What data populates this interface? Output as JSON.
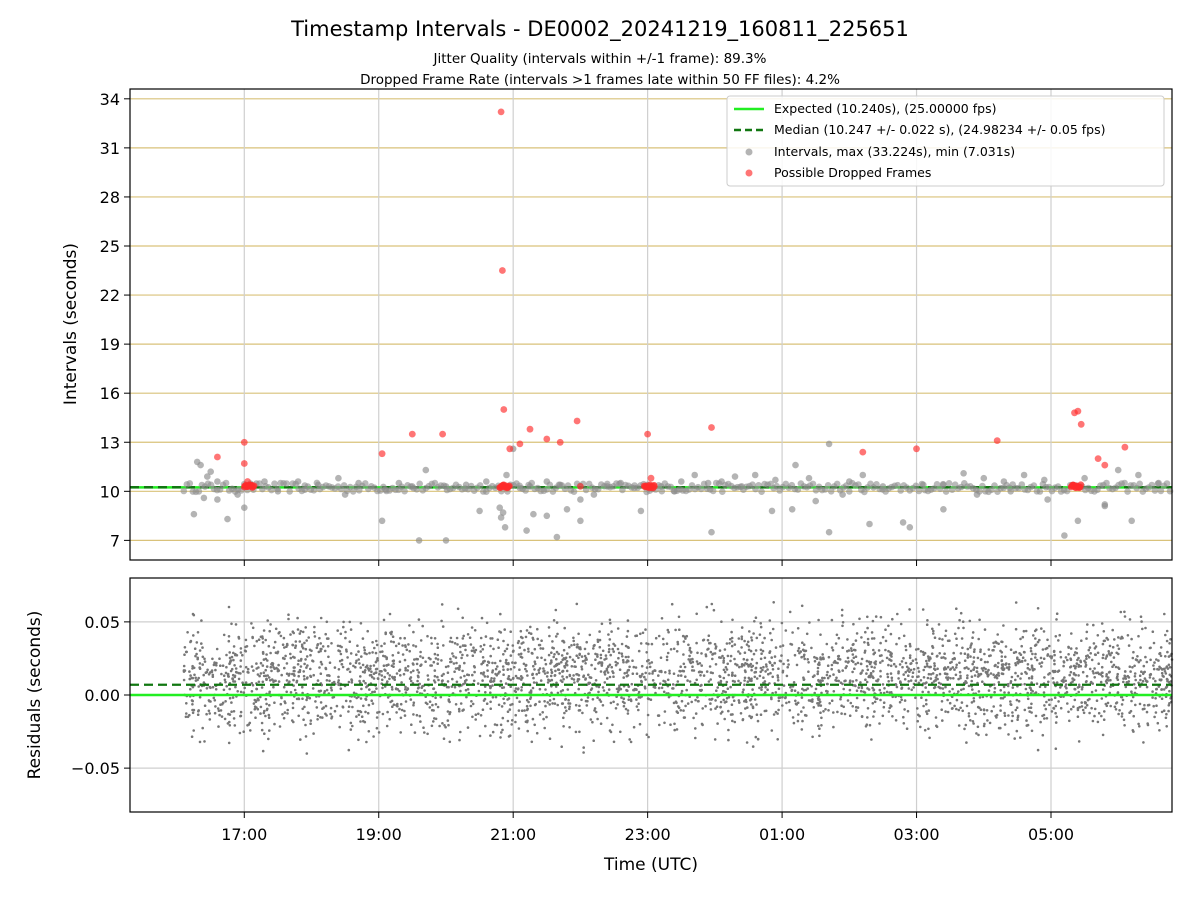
{
  "figure": {
    "title": "Timestamp Intervals - DE0002_20241219_160811_225651",
    "subtitle_1": "Jitter Quality (intervals within +/-1 frame): 89.3%",
    "subtitle_2": "Dropped Frame Rate (intervals >1 frames late within 50 FF files): 4.2%"
  },
  "colors": {
    "expected": "#22ee22",
    "median": "#117711",
    "intervals": "#8c8c8c",
    "dropped": "#ff2b2b",
    "hgrid_top": "#d9c27a",
    "grid": "#cfcfcf",
    "residual_points": "#777777"
  },
  "chart_data": [
    {
      "type": "scatter",
      "panel": "intervals",
      "ylabel": "Intervals (seconds)",
      "xlabel": "",
      "xlim_hours": [
        15.3,
        30.8
      ],
      "ylim": [
        5.8,
        34.6
      ],
      "yticks": [
        7,
        10,
        13,
        16,
        19,
        22,
        25,
        28,
        31,
        34
      ],
      "grid": "horizontal at every y tick, vertical at every x tick",
      "legend_position": "top-right",
      "legend": [
        {
          "key": "expected",
          "label": "Expected (10.240s), (25.00000 fps)"
        },
        {
          "key": "median",
          "label": "Median (10.247 +/- 0.022 s), (24.98234 +/- 0.05 fps)"
        },
        {
          "key": "intervals",
          "label": "Intervals, max (33.224s), min (7.031s)"
        },
        {
          "key": "dropped",
          "label": "Possible Dropped Frames"
        }
      ],
      "expected_line": 10.24,
      "median_line": 10.247,
      "note": "time values in hours since 00:00 UTC on the start day (values above 24 are after midnight)",
      "series": [
        {
          "name": "Intervals, max (33.224s), min (7.031s)",
          "x": [
            16.3,
            16.35,
            16.4,
            16.45,
            16.5,
            16.6,
            16.75,
            16.9,
            17.1,
            17.3,
            17.5,
            17.8,
            18.1,
            18.4,
            18.7,
            19.1,
            19.3,
            19.5,
            19.7,
            20.0,
            20.3,
            20.6,
            20.8,
            20.85,
            20.9,
            21.0,
            21.1,
            21.25,
            21.3,
            21.5,
            21.65,
            21.7,
            21.8,
            22.0,
            22.2,
            22.4,
            22.6,
            22.8,
            23.0,
            23.2,
            23.5,
            23.7,
            23.9,
            24.1,
            24.4,
            24.6,
            24.9,
            25.2,
            25.4,
            25.5,
            25.7,
            26.0,
            26.2,
            26.5,
            26.8,
            27.1,
            27.4,
            27.7,
            28.0,
            28.3,
            28.6,
            28.9,
            29.2,
            29.5,
            29.8,
            30.0,
            30.3,
            30.6,
            16.25,
            16.6,
            17.0,
            17.9,
            18.5,
            19.05,
            19.6,
            20.0,
            20.5,
            20.82,
            20.88,
            21.2,
            21.5,
            22.0,
            22.9,
            23.4,
            23.95,
            24.3,
            24.85,
            25.15,
            25.7,
            25.9,
            26.3,
            26.9,
            27.4,
            27.9,
            28.4,
            28.95,
            29.4,
            29.8,
            30.2
          ],
          "y": [
            11.8,
            11.6,
            9.6,
            10.9,
            11.2,
            10.6,
            8.3,
            9.8,
            10.4,
            10.6,
            10.0,
            10.6,
            10.4,
            10.8,
            10.5,
            10.1,
            10.5,
            10.3,
            11.3,
            10.3,
            10.4,
            10.6,
            9.0,
            8.7,
            11.0,
            12.6,
            10.2,
            10.3,
            8.6,
            10.6,
            7.2,
            10.4,
            8.9,
            9.5,
            9.8,
            10.3,
            10.5,
            10.2,
            10.4,
            10.3,
            10.6,
            11.0,
            10.5,
            10.6,
            10.3,
            11.0,
            10.7,
            11.6,
            10.8,
            9.4,
            12.9,
            10.6,
            11.0,
            10.3,
            8.1,
            10.4,
            10.4,
            11.1,
            10.8,
            10.6,
            11.0,
            10.7,
            7.3,
            10.8,
            9.1,
            11.3,
            11.0,
            10.5,
            8.6,
            9.5,
            9.0,
            10.1,
            9.8,
            8.2,
            7.0,
            7.0,
            8.8,
            8.4,
            7.8,
            7.6,
            8.5,
            8.2,
            8.8,
            10.0,
            7.5,
            10.9,
            8.8,
            8.9,
            7.5,
            9.8,
            8.0,
            7.8,
            8.9,
            9.8,
            10.0,
            9.5,
            8.2,
            9.2,
            8.2
          ]
        },
        {
          "name": "Possible Dropped Frames",
          "x": [
            16.6,
            17.0,
            17.0,
            17.05,
            17.1,
            19.05,
            19.5,
            19.95,
            20.82,
            20.84,
            20.86,
            20.95,
            21.1,
            21.25,
            21.5,
            21.7,
            21.95,
            22.0,
            23.0,
            23.05,
            23.1,
            23.95,
            26.2,
            27.0,
            28.2,
            29.35,
            29.4,
            29.45,
            29.7,
            29.8,
            30.1
          ],
          "y": [
            12.1,
            13.0,
            11.7,
            10.6,
            10.3,
            12.3,
            13.5,
            13.5,
            33.2,
            23.5,
            15.0,
            12.6,
            12.9,
            13.8,
            13.2,
            13.0,
            14.3,
            10.3,
            13.5,
            10.8,
            10.3,
            13.9,
            12.4,
            12.6,
            13.1,
            14.8,
            14.9,
            14.1,
            12.0,
            11.6,
            12.7
          ]
        }
      ]
    },
    {
      "type": "scatter",
      "panel": "residuals",
      "ylabel": "Residuals (seconds)",
      "xlabel": "Time (UTC)",
      "xlim_hours": [
        15.3,
        30.8
      ],
      "ylim": [
        -0.08,
        0.08
      ],
      "yticks": [
        -0.05,
        0.0,
        0.05
      ],
      "ytick_labels": [
        "−0.05",
        "0.00",
        "0.05"
      ],
      "xticks_hours": [
        17,
        19,
        21,
        23,
        25,
        27,
        29
      ],
      "xtick_labels": [
        "17:00",
        "19:00",
        "21:00",
        "23:00",
        "01:00",
        "03:00",
        "05:00"
      ],
      "expected_line": 0.0,
      "median_line": 0.007,
      "series": [
        {
          "name": "Residuals",
          "x_range_hours": [
            16.1,
            30.8
          ],
          "center": 0.012,
          "spread": 0.018,
          "count": 3600
        }
      ]
    }
  ]
}
